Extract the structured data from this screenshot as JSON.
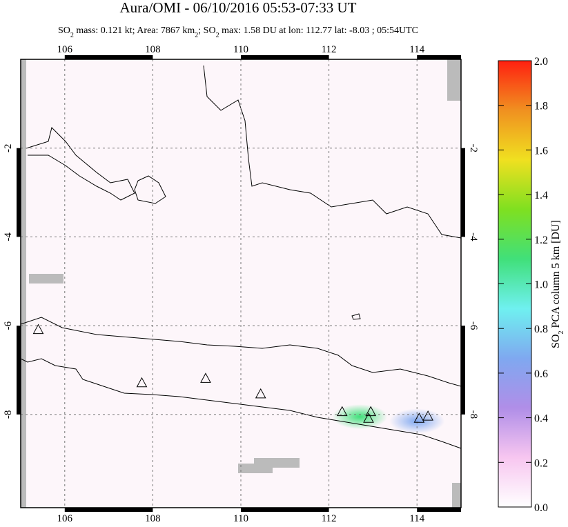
{
  "chart_data": {
    "type": "map",
    "title": "Aura/OMI - 06/10/2016 05:53-07:33 UT",
    "subtitle_parts": [
      "SO",
      "2",
      " mass: 0.121 kt; Area: 7867 km",
      "2",
      "; SO",
      "2",
      " max: 1.58 DU at lon: 112.77 lat: -8.03 ; 05:54UTC"
    ],
    "xlim": [
      105,
      115
    ],
    "ylim": [
      -10.1,
      0
    ],
    "xticks": [
      106,
      108,
      110,
      112,
      114
    ],
    "yticks": [
      -2,
      -4,
      -6,
      -8
    ],
    "grid": true,
    "volcanoes": {
      "lon": [
        105.4,
        107.75,
        109.2,
        110.45,
        112.3,
        112.95,
        112.9,
        114.05,
        114.25
      ],
      "lat": [
        -6.1,
        -7.3,
        -7.2,
        -7.55,
        -7.95,
        -7.95,
        -8.1,
        -8.1,
        -8.05
      ]
    },
    "plumes": {
      "lon": [
        112.7,
        114.0
      ],
      "lat": [
        -8.05,
        -8.15
      ],
      "values": [
        1.0,
        0.7
      ]
    },
    "colorbar": {
      "label_parts": [
        "SO",
        "2",
        " PCA column 5 km [DU]"
      ],
      "lim": [
        0,
        2
      ],
      "ticks": [
        {
          "value": 0,
          "label": "0.0"
        },
        0.2,
        0.4,
        0.6,
        0.8,
        {
          "value": 1,
          "label": "1.0"
        },
        1.2,
        1.4,
        1.6,
        1.8,
        {
          "value": 2,
          "label": "2.0"
        }
      ],
      "colors": [
        "#ffffff",
        "#f7c6f0",
        "#b08ee8",
        "#7fa8f0",
        "#6ff0f0",
        "#40e07a",
        "#7fe020",
        "#f0e020",
        "#f09020",
        "#ff2010"
      ]
    }
  }
}
